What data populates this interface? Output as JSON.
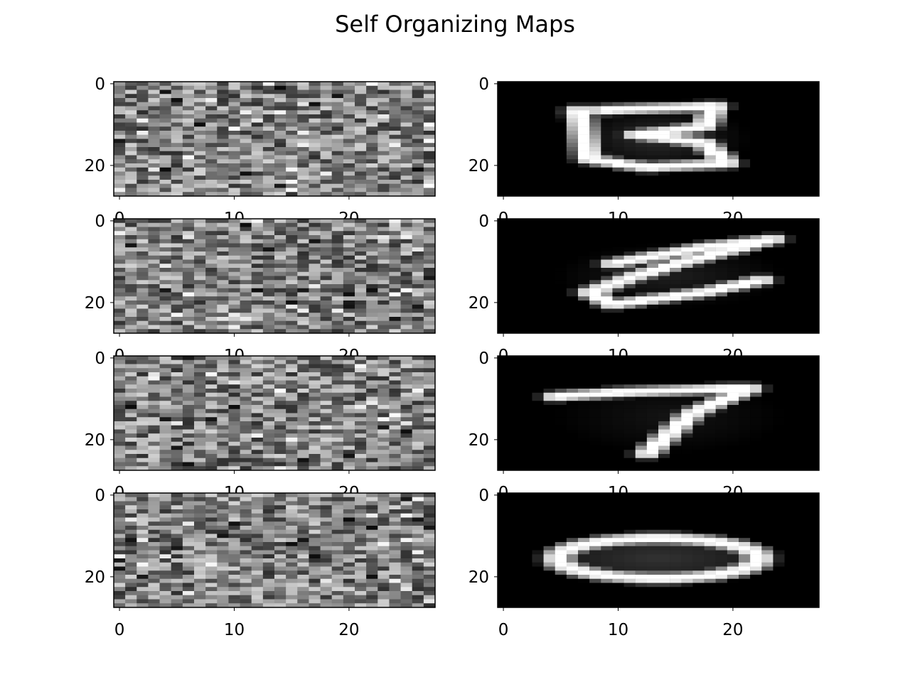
{
  "figure": {
    "title": "Self Organizing Maps",
    "background": "#ffffff"
  },
  "chart_data": [
    {
      "type": "heatmap",
      "panel": "row-1-left",
      "content": "random grayscale noise (initial weights)",
      "colormap": "gray",
      "image_shape": [
        28,
        28
      ],
      "xticks": [
        "0",
        "10",
        "20"
      ],
      "yticks": [
        "0",
        "20"
      ]
    },
    {
      "type": "heatmap",
      "panel": "row-1-right",
      "content": "learned prototype resembling digit 3",
      "colormap": "gray",
      "image_shape": [
        28,
        28
      ],
      "xticks": [
        "0",
        "10",
        "20"
      ],
      "yticks": [
        "0",
        "20"
      ]
    },
    {
      "type": "heatmap",
      "panel": "row-2-left",
      "content": "random grayscale noise (initial weights)",
      "colormap": "gray",
      "image_shape": [
        28,
        28
      ],
      "xticks": [
        "0",
        "10",
        "20"
      ],
      "yticks": [
        "0",
        "20"
      ]
    },
    {
      "type": "heatmap",
      "panel": "row-2-right",
      "content": "learned prototype resembling a slanted digit 2",
      "colormap": "gray",
      "image_shape": [
        28,
        28
      ],
      "xticks": [
        "0",
        "10",
        "20"
      ],
      "yticks": [
        "0",
        "20"
      ]
    },
    {
      "type": "heatmap",
      "panel": "row-3-left",
      "content": "random grayscale noise (initial weights)",
      "colormap": "gray",
      "image_shape": [
        28,
        28
      ],
      "xticks": [
        "0",
        "10",
        "20"
      ],
      "yticks": [
        "0",
        "20"
      ]
    },
    {
      "type": "heatmap",
      "panel": "row-3-right",
      "content": "learned prototype resembling digit 7",
      "colormap": "gray",
      "image_shape": [
        28,
        28
      ],
      "xticks": [
        "0",
        "10",
        "20"
      ],
      "yticks": [
        "0",
        "20"
      ]
    },
    {
      "type": "heatmap",
      "panel": "row-4-left",
      "content": "random grayscale noise (initial weights)",
      "colormap": "gray",
      "image_shape": [
        28,
        28
      ],
      "xticks": [
        "0",
        "10",
        "20"
      ],
      "yticks": [
        "0",
        "20"
      ]
    },
    {
      "type": "heatmap",
      "panel": "row-4-right",
      "content": "learned prototype resembling digit 0",
      "colormap": "gray",
      "image_shape": [
        28,
        28
      ],
      "xticks": [
        "0",
        "10",
        "20"
      ],
      "yticks": [
        "0",
        "20"
      ]
    }
  ]
}
